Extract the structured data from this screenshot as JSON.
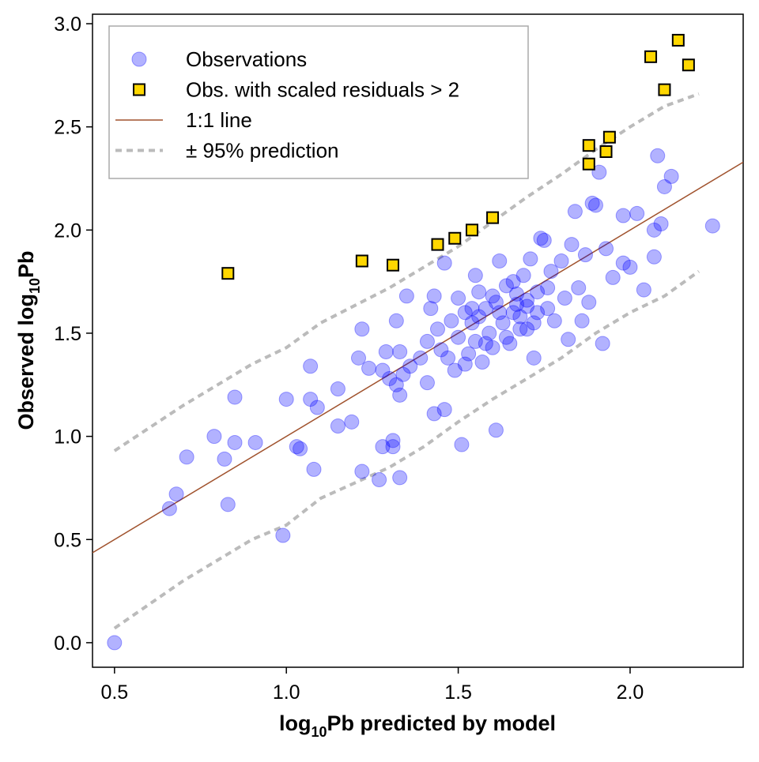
{
  "chart_data": {
    "type": "scatter",
    "xlabel": [
      "log",
      "10",
      "Pb predicted by model"
    ],
    "ylabel": [
      "Observed log",
      "10",
      "Pb"
    ],
    "xlim": [
      0.436,
      2.329
    ],
    "ylim": [
      -0.119,
      3.046
    ],
    "xticks": [
      0.5,
      {
        "value": 1,
        "label": "1.0"
      },
      1.5,
      {
        "value": 2,
        "label": "2.0"
      }
    ],
    "yticks": [
      {
        "value": 0,
        "label": "0.0"
      },
      0.5,
      {
        "value": 1,
        "label": "1.0"
      },
      1.5,
      {
        "value": 2,
        "label": "2.0"
      },
      2.5,
      {
        "value": 3,
        "label": "3.0"
      }
    ],
    "legend": "top-left",
    "series": [
      {
        "name": "Observations",
        "marker": "circle",
        "color": "#0000ff",
        "x": [
          0.5,
          0.66,
          0.68,
          0.71,
          0.79,
          0.82,
          0.83,
          0.85,
          0.85,
          0.91,
          0.99,
          1.0,
          1.03,
          1.04,
          1.07,
          1.07,
          1.08,
          1.09,
          1.15,
          1.15,
          1.19,
          1.21,
          1.22,
          1.22,
          1.24,
          1.27,
          1.28,
          1.28,
          1.29,
          1.3,
          1.31,
          1.31,
          1.32,
          1.32,
          1.33,
          1.33,
          1.33,
          1.34,
          1.35,
          1.36,
          1.39,
          1.41,
          1.41,
          1.42,
          1.43,
          1.43,
          1.44,
          1.46,
          1.46,
          1.47,
          1.48,
          1.49,
          1.5,
          1.5,
          1.51,
          1.52,
          1.53,
          1.54,
          1.55,
          1.55,
          1.56,
          1.57,
          1.58,
          1.59,
          1.6,
          1.61,
          1.61,
          1.62,
          1.63,
          1.64,
          1.65,
          1.66,
          1.67,
          1.68,
          1.69,
          1.7,
          1.71,
          1.72,
          1.72,
          1.73,
          1.74,
          1.75,
          1.76,
          1.77,
          1.78,
          1.8,
          1.81,
          1.82,
          1.83,
          1.84,
          1.85,
          1.86,
          1.87,
          1.88,
          1.89,
          1.9,
          1.91,
          1.92,
          1.93,
          1.95,
          1.98,
          1.98,
          2.0,
          2.02,
          2.04,
          2.07,
          2.07,
          2.08,
          2.09,
          2.1,
          2.12,
          2.24,
          1.45,
          1.52,
          1.56,
          1.6,
          1.64,
          1.66,
          1.68,
          1.7,
          1.73,
          1.76,
          1.58,
          1.62,
          1.54,
          1.67,
          1.7
        ],
        "values": [
          0.0,
          0.65,
          0.72,
          0.9,
          1.0,
          0.89,
          0.67,
          0.97,
          1.19,
          0.97,
          0.52,
          1.18,
          0.95,
          0.94,
          1.18,
          1.34,
          0.84,
          1.14,
          1.23,
          1.05,
          1.07,
          1.38,
          0.83,
          1.52,
          1.33,
          0.79,
          0.95,
          1.32,
          1.41,
          1.28,
          0.98,
          0.95,
          1.56,
          1.25,
          1.2,
          0.8,
          1.41,
          1.3,
          1.68,
          1.34,
          1.38,
          1.26,
          1.46,
          1.62,
          1.11,
          1.68,
          1.52,
          1.13,
          1.84,
          1.38,
          1.56,
          1.32,
          1.48,
          1.67,
          0.96,
          1.6,
          1.4,
          1.55,
          1.78,
          1.46,
          1.7,
          1.36,
          1.62,
          1.5,
          1.43,
          1.03,
          1.65,
          1.85,
          1.55,
          1.73,
          1.45,
          1.6,
          1.69,
          1.52,
          1.78,
          1.63,
          1.86,
          1.55,
          1.38,
          1.7,
          1.96,
          1.95,
          1.62,
          1.8,
          1.56,
          1.85,
          1.67,
          1.47,
          1.93,
          2.09,
          1.72,
          1.56,
          1.88,
          1.65,
          2.13,
          2.12,
          2.28,
          1.45,
          1.91,
          1.77,
          2.07,
          1.84,
          1.82,
          2.08,
          1.71,
          1.87,
          2.0,
          2.36,
          2.03,
          2.21,
          2.26,
          2.02,
          1.42,
          1.35,
          1.58,
          1.68,
          1.48,
          1.75,
          1.58,
          1.66,
          1.6,
          1.72,
          1.45,
          1.6,
          1.62,
          1.64,
          1.52
        ]
      },
      {
        "name": "Obs. with scaled residuals > 2",
        "marker": "square",
        "color": "#ffd700",
        "x": [
          0.83,
          1.22,
          1.31,
          1.44,
          1.49,
          1.54,
          1.6,
          1.88,
          1.88,
          1.93,
          1.94,
          2.06,
          2.1,
          2.14,
          2.17
        ],
        "values": [
          1.79,
          1.85,
          1.83,
          1.93,
          1.96,
          2.0,
          2.06,
          2.32,
          2.41,
          2.38,
          2.45,
          2.84,
          2.68,
          2.92,
          2.8
        ]
      },
      {
        "name": "1:1 line",
        "marker": "line",
        "color": "#a0522d",
        "x": [
          0.436,
          2.329
        ],
        "values": [
          0.436,
          2.329
        ]
      },
      {
        "name": "± 95% prediction",
        "marker": "dashed",
        "color": "#bbbbbb",
        "parts": [
          {
            "x": [
              0.5,
              0.7,
              0.9,
              1.0,
              1.1,
              1.3,
              1.4,
              1.5,
              1.6,
              1.7,
              1.8,
              1.9,
              2.0,
              2.1,
              2.2
            ],
            "values": [
              0.93,
              1.15,
              1.35,
              1.43,
              1.55,
              1.72,
              1.82,
              1.92,
              2.04,
              2.16,
              2.27,
              2.39,
              2.5,
              2.6,
              2.66
            ]
          },
          {
            "x": [
              0.5,
              0.7,
              0.9,
              1.0,
              1.1,
              1.3,
              1.4,
              1.5,
              1.6,
              1.7,
              1.8,
              1.9,
              2.0,
              2.1,
              2.2
            ],
            "values": [
              0.07,
              0.3,
              0.5,
              0.57,
              0.7,
              0.85,
              0.95,
              1.07,
              1.18,
              1.28,
              1.38,
              1.5,
              1.6,
              1.68,
              1.8
            ]
          }
        ]
      }
    ]
  }
}
